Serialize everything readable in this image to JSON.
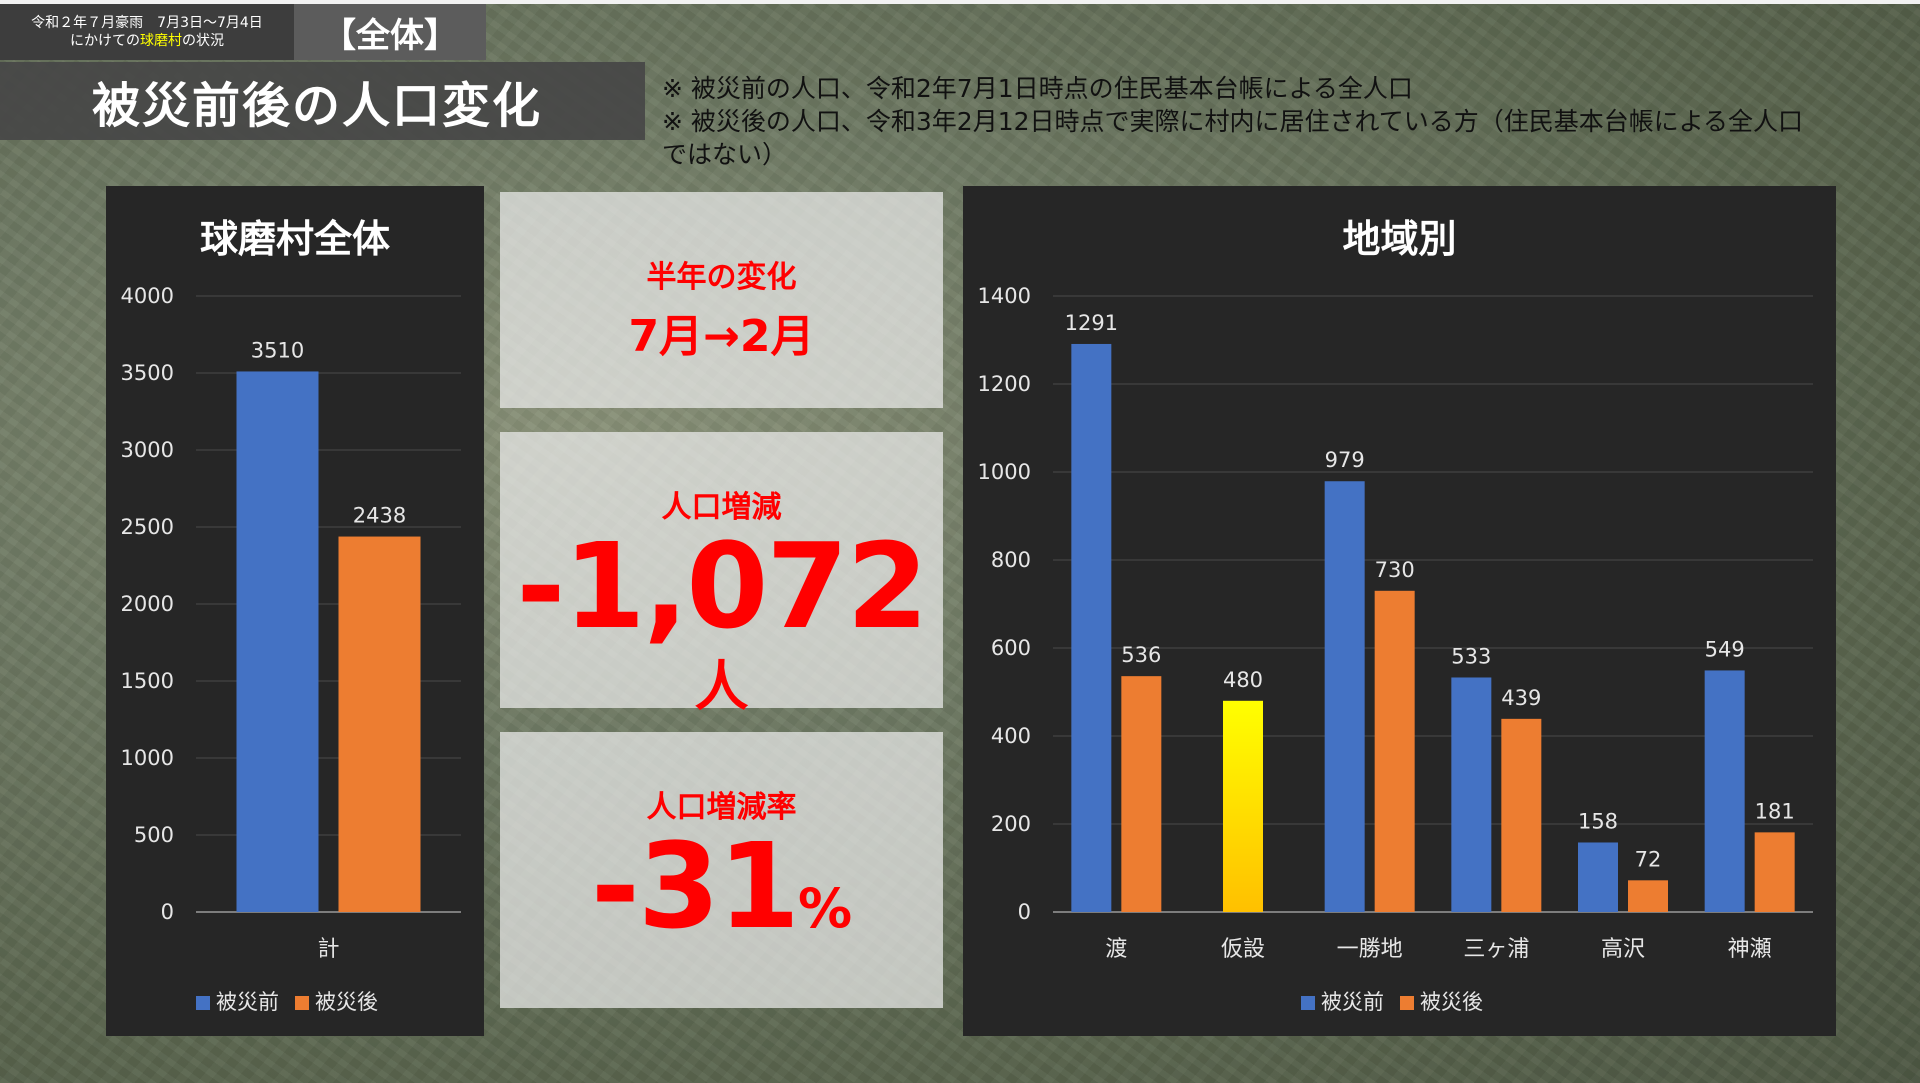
{
  "header": {
    "line1": "令和２年７月豪雨　7月3日～7月4日",
    "line2_pre": "にかけての",
    "line2_hl": "球磨村",
    "line2_post": "の状況",
    "scope": "【全体】"
  },
  "title": "被災前後の人口変化",
  "notes": [
    "※ 被災前の人口、令和2年7月1日時点の住民基本台帳による全人口",
    "※ 被災後の人口、令和3年2月12日時点で実際に村内に居住されている方（住民基本台帳による全人口ではない）"
  ],
  "stats": {
    "period_label": "半年の変化",
    "period_value": "7月→2月",
    "change_label": "人口増減",
    "change_value": "-1,072",
    "change_unit": "人",
    "rate_label": "人口増減率",
    "rate_value": "-31",
    "rate_unit": "%"
  },
  "colors": {
    "before": "#4472c4",
    "after": "#ed7d31",
    "temp": "#ffd700",
    "stat_red": "#ff0000"
  },
  "chart_data": [
    {
      "type": "bar",
      "title": "球磨村全体",
      "categories": [
        "計"
      ],
      "series": [
        {
          "name": "被災前",
          "values": [
            3510
          ]
        },
        {
          "name": "被災後",
          "values": [
            2438
          ]
        }
      ],
      "ylim": [
        0,
        4000
      ],
      "yticks": [
        0,
        500,
        1000,
        1500,
        2000,
        2500,
        3000,
        3500,
        4000
      ],
      "grid": true,
      "legend": "bottom"
    },
    {
      "type": "bar",
      "title": "地域別",
      "categories": [
        "渡",
        "仮設",
        "一勝地",
        "三ヶ浦",
        "高沢",
        "神瀬"
      ],
      "series": [
        {
          "name": "被災前",
          "values": [
            1291,
            null,
            979,
            533,
            158,
            549
          ]
        },
        {
          "name": "被災後",
          "values": [
            536,
            480,
            730,
            439,
            72,
            181
          ]
        }
      ],
      "ylim": [
        0,
        1400
      ],
      "yticks": [
        0,
        200,
        400,
        600,
        800,
        1000,
        1200,
        1400
      ],
      "grid": true,
      "legend": "bottom"
    }
  ]
}
